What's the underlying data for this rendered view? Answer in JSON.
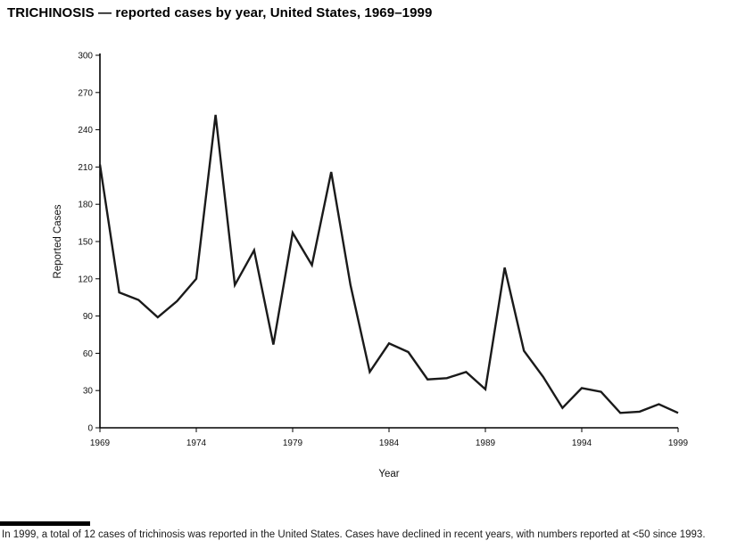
{
  "page": {
    "title": "TRICHINOSIS — reported cases by year, United States, 1969–1999",
    "footnote": "In 1999, a total of 12 cases of trichinosis was reported in the United States. Cases have declined in recent years, with numbers reported at <50 since 1993."
  },
  "chart_data": {
    "type": "line",
    "title": "TRICHINOSIS — reported cases by year, United States, 1969–1999",
    "xlabel": "Year",
    "ylabel": "Reported Cases",
    "x": [
      1969,
      1970,
      1971,
      1972,
      1973,
      1974,
      1975,
      1976,
      1977,
      1978,
      1979,
      1980,
      1981,
      1982,
      1983,
      1984,
      1985,
      1986,
      1987,
      1988,
      1989,
      1990,
      1991,
      1992,
      1993,
      1994,
      1995,
      1996,
      1997,
      1998,
      1999
    ],
    "values": [
      212,
      109,
      103,
      89,
      102,
      120,
      252,
      115,
      143,
      67,
      157,
      131,
      206,
      115,
      45,
      68,
      61,
      39,
      40,
      45,
      31,
      129,
      62,
      41,
      16,
      32,
      29,
      12,
      13,
      19,
      12
    ],
    "ylim": [
      0,
      300
    ],
    "ytick_step": 30,
    "xticks": [
      1969,
      1974,
      1979,
      1984,
      1989,
      1994,
      1999
    ],
    "line_color": "#1a1a1a",
    "axis_color": "#000000",
    "grid": false,
    "legend": false
  }
}
